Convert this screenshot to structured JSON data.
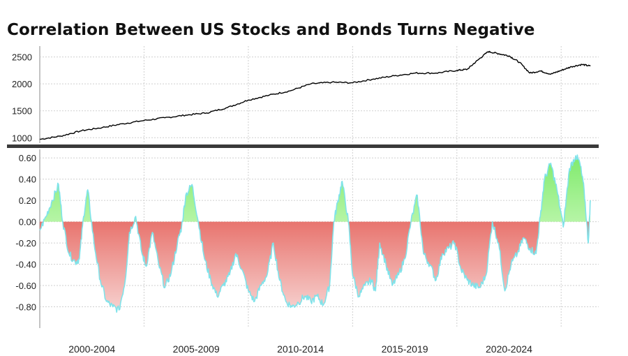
{
  "title": "Correlation Between US Stocks and Bonds Turns Negative",
  "chart_data": [
    {
      "type": "line",
      "panel": "top",
      "ylim": [
        900,
        2650
      ],
      "ytick_labels": [
        "2500",
        "2000",
        "1500",
        "1000"
      ],
      "ytick_values": [
        2500,
        2000,
        1500,
        1000
      ],
      "colors": {
        "line": "#000000"
      },
      "x": [
        1999.0,
        2000.0,
        2001.0,
        2002.0,
        2003.0,
        2004.0,
        2005.0,
        2006.0,
        2007.0,
        2008.0,
        2009.0,
        2010.0,
        2011.0,
        2012.0,
        2013.0,
        2014.0,
        2015.0,
        2016.0,
        2017.0,
        2018.0,
        2019.0,
        2019.5,
        2020.0,
        2020.5,
        2021.0,
        2021.5,
        2022.0,
        2022.5,
        2023.0,
        2023.5,
        2024.0,
        2024.5,
        2025.0,
        2025.4
      ],
      "y": [
        970,
        1030,
        1130,
        1190,
        1260,
        1320,
        1370,
        1420,
        1460,
        1560,
        1700,
        1790,
        1870,
        2000,
        2030,
        2020,
        2090,
        2150,
        2200,
        2200,
        2250,
        2270,
        2440,
        2600,
        2560,
        2520,
        2400,
        2200,
        2240,
        2180,
        2250,
        2320,
        2360,
        2330
      ]
    },
    {
      "type": "area",
      "panel": "bottom",
      "ylim": [
        -1.0,
        0.68
      ],
      "ytick_labels": [
        "0.60",
        "0.40",
        "0.20",
        "0.00",
        "-0.20",
        "-0.40",
        "-0.60",
        "-0.80"
      ],
      "ytick_values": [
        0.6,
        0.4,
        0.2,
        0.0,
        -0.2,
        -0.4,
        -0.6,
        -0.8
      ],
      "xtick_labels": [
        "2000-2004",
        "2005-2009",
        "2010-2014",
        "2015-2019",
        "2020-2024"
      ],
      "colors": {
        "positive": "#86ee76",
        "negative": "#e8746e",
        "edge": "#7fe3ea"
      },
      "x": [
        1999.0,
        1999.3,
        1999.6,
        1999.9,
        2000.1,
        2000.4,
        2000.7,
        2000.9,
        2001.1,
        2001.3,
        2001.6,
        2001.9,
        2002.2,
        2002.5,
        2002.8,
        2003.1,
        2003.3,
        2003.6,
        2003.9,
        2004.1,
        2004.4,
        2004.7,
        2005.0,
        2005.3,
        2005.6,
        2005.8,
        2006.0,
        2006.3,
        2006.6,
        2006.9,
        2007.2,
        2007.5,
        2007.8,
        2008.1,
        2008.4,
        2008.7,
        2009.0,
        2009.3,
        2009.6,
        2009.9,
        2010.2,
        2010.5,
        2010.8,
        2011.1,
        2011.4,
        2011.7,
        2012.0,
        2012.3,
        2012.6,
        2012.9,
        2013.1,
        2013.3,
        2013.5,
        2013.8,
        2014.0,
        2014.3,
        2014.6,
        2014.9,
        2015.1,
        2015.3,
        2015.6,
        2015.9,
        2016.2,
        2016.5,
        2016.8,
        2017.1,
        2017.4,
        2017.7,
        2018.0,
        2018.3,
        2018.6,
        2018.9,
        2019.2,
        2019.5,
        2019.8,
        2020.1,
        2020.4,
        2020.7,
        2021.0,
        2021.3,
        2021.6,
        2021.9,
        2022.2,
        2022.5,
        2022.8,
        2023.0,
        2023.2,
        2023.5,
        2023.8,
        2024.1,
        2024.4,
        2024.7,
        2024.9,
        2025.1,
        2025.3,
        2025.4
      ],
      "y": [
        -0.08,
        0.05,
        0.2,
        0.35,
        0.0,
        -0.3,
        -0.38,
        -0.35,
        0.05,
        0.3,
        -0.2,
        -0.55,
        -0.75,
        -0.8,
        -0.83,
        -0.55,
        -0.1,
        0.05,
        -0.3,
        -0.42,
        -0.1,
        -0.4,
        -0.62,
        -0.48,
        -0.2,
        -0.05,
        0.25,
        0.35,
        0.0,
        -0.35,
        -0.55,
        -0.7,
        -0.6,
        -0.5,
        -0.3,
        -0.45,
        -0.65,
        -0.75,
        -0.6,
        -0.5,
        -0.2,
        -0.55,
        -0.75,
        -0.8,
        -0.76,
        -0.7,
        -0.75,
        -0.7,
        -0.78,
        -0.6,
        0.0,
        0.2,
        0.38,
        0.0,
        -0.5,
        -0.7,
        -0.6,
        -0.55,
        -0.65,
        -0.2,
        -0.4,
        -0.6,
        -0.5,
        -0.35,
        0.0,
        0.25,
        -0.3,
        -0.4,
        -0.55,
        -0.3,
        -0.25,
        -0.2,
        -0.45,
        -0.55,
        -0.6,
        -0.62,
        -0.5,
        0.0,
        -0.2,
        -0.65,
        -0.4,
        -0.3,
        -0.15,
        -0.25,
        -0.3,
        0.05,
        0.4,
        0.55,
        0.3,
        -0.05,
        0.5,
        0.62,
        0.55,
        0.3,
        -0.2,
        0.2
      ]
    }
  ]
}
